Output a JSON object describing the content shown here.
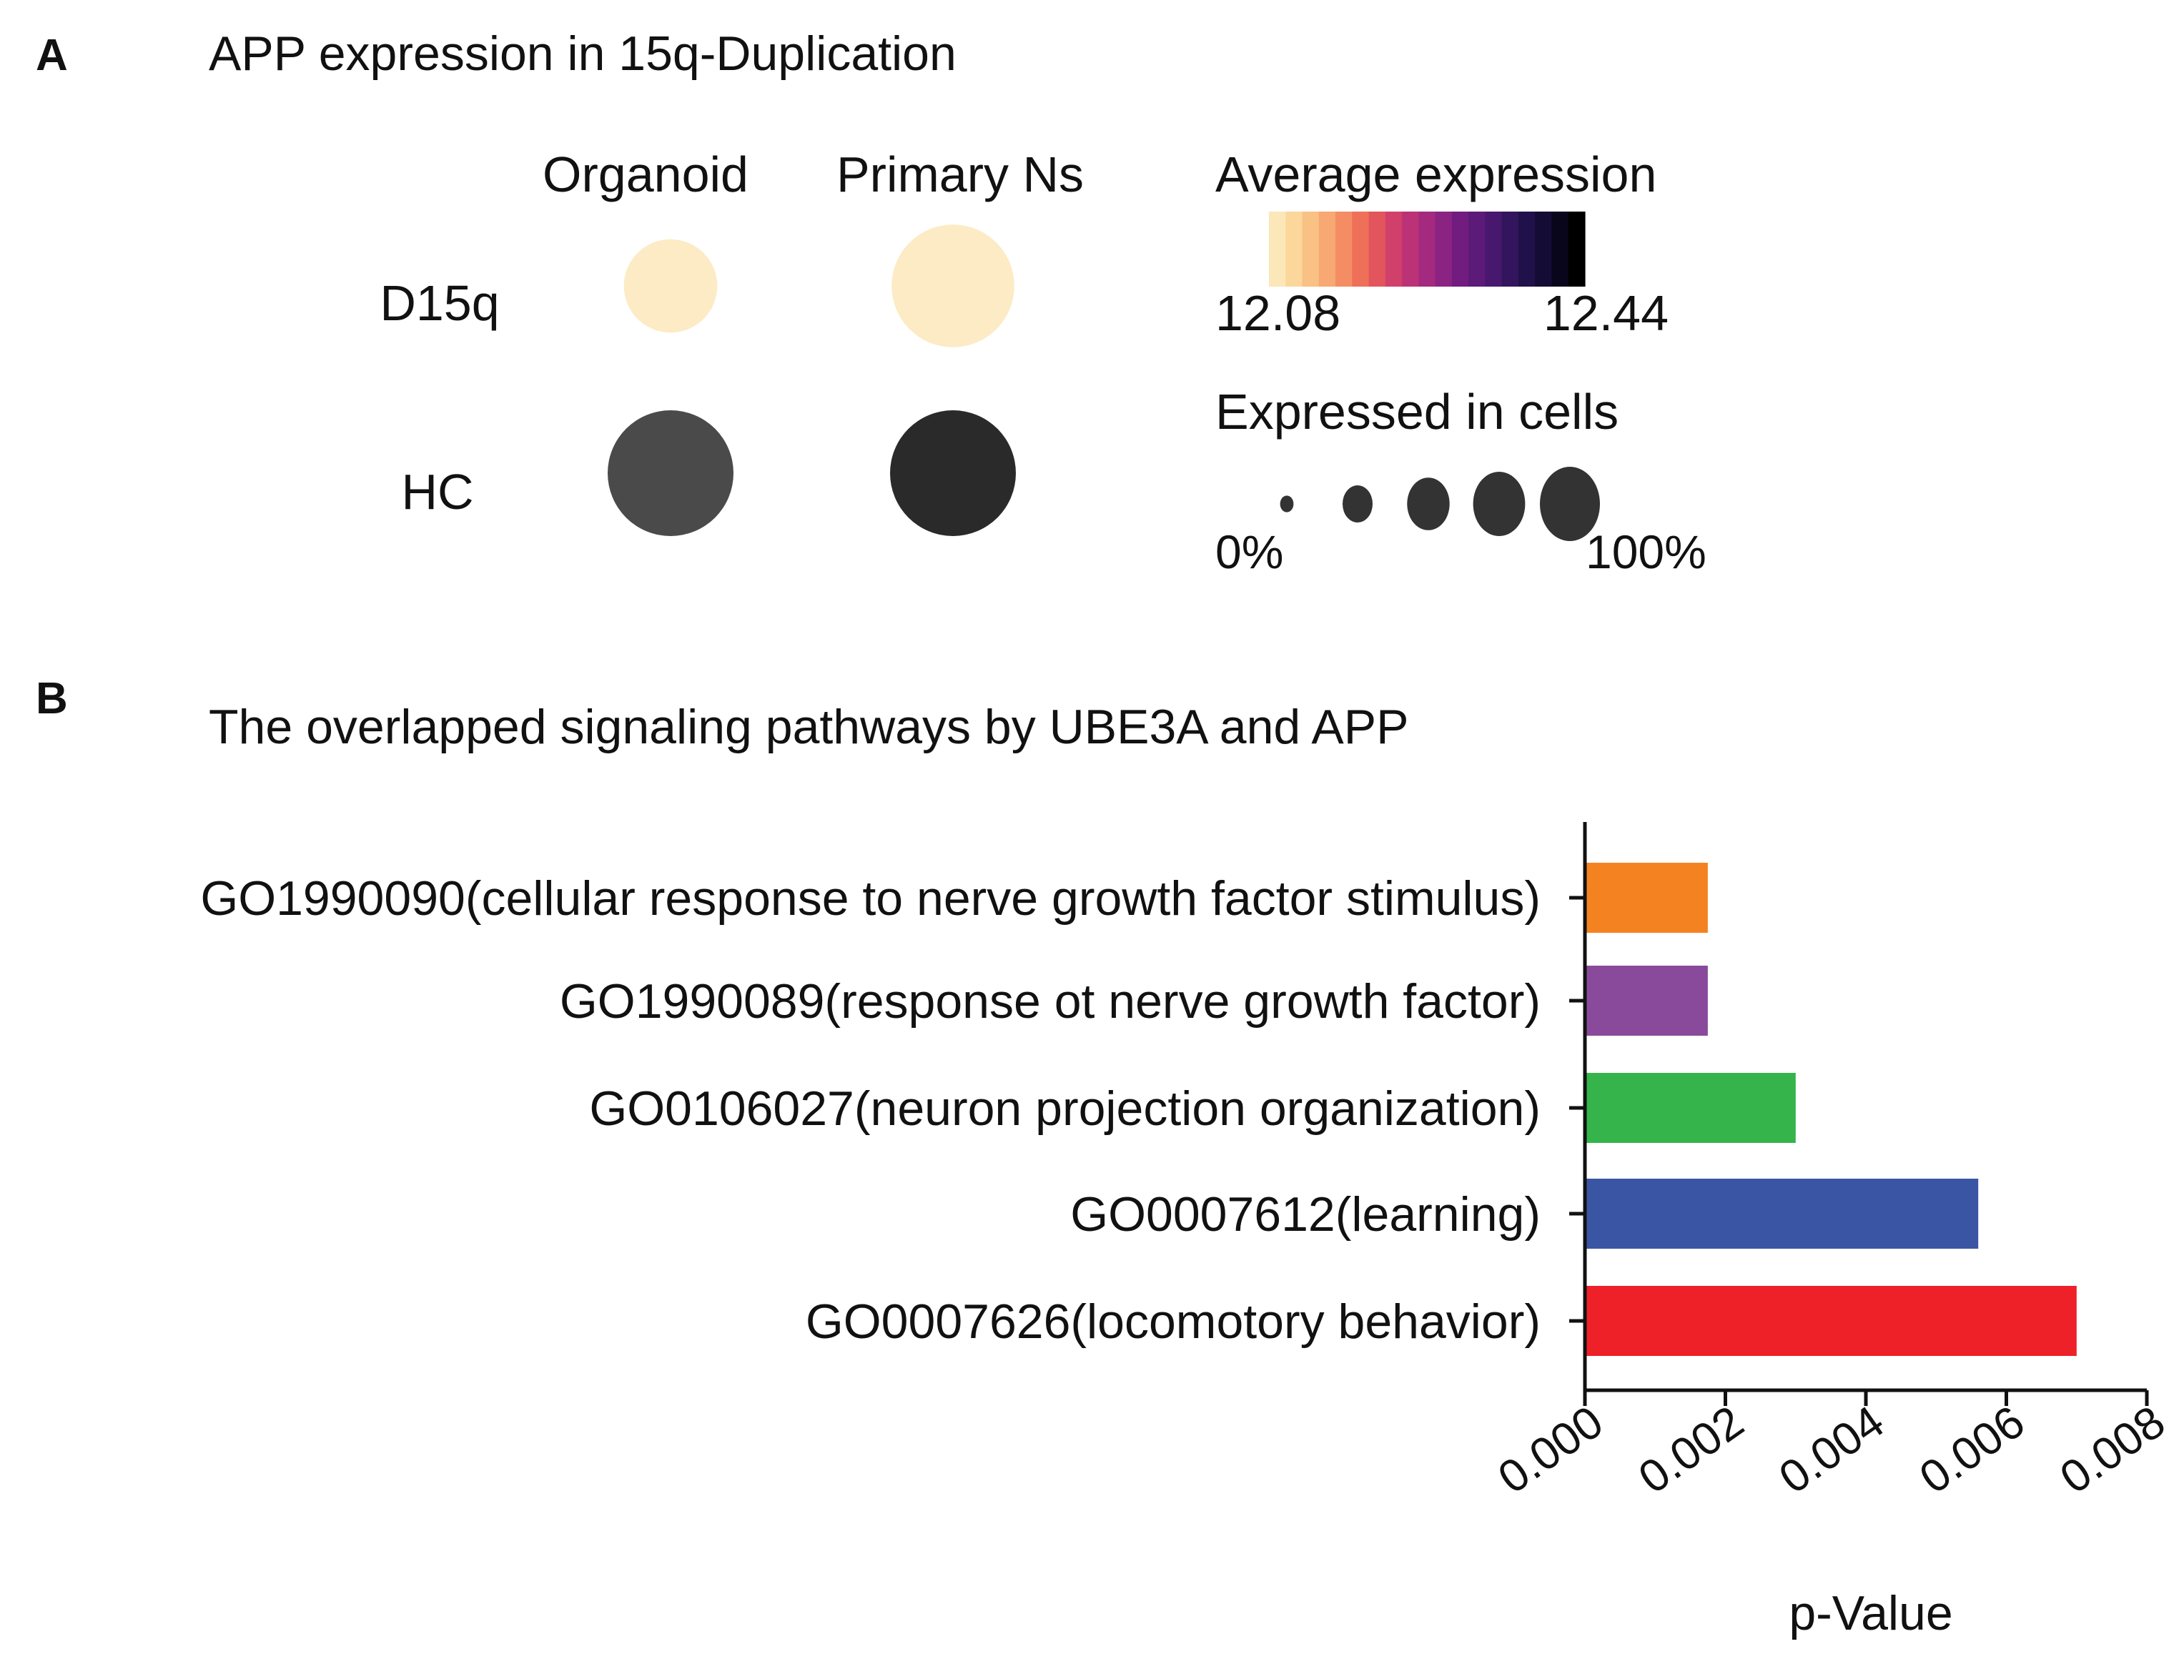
{
  "panel_a": {
    "letter": "A",
    "title": "APP expression in 15q-Duplication",
    "columns": [
      "Organoid",
      "Primary Ns"
    ],
    "rows": [
      "D15q",
      "HC"
    ],
    "legend_color": {
      "title": "Average expression",
      "min_label": "12.08",
      "max_label": "12.44",
      "colors": [
        "#fce7b8",
        "#fbd79b",
        "#f9c184",
        "#f7a873",
        "#f58d64",
        "#ef7058",
        "#e2555c",
        "#d1406a",
        "#bb3277",
        "#a32a7e",
        "#8b2382",
        "#721c7f",
        "#5c1a79",
        "#47186e",
        "#33155e",
        "#21114a",
        "#140c34",
        "#09061c",
        "#000000"
      ]
    },
    "legend_size": {
      "title": "Expressed in cells",
      "min_label": "0%",
      "max_label": "100%",
      "steps": [
        0.05,
        0.25,
        0.5,
        0.75,
        1.0
      ]
    }
  },
  "panel_b": {
    "letter": "B",
    "title": "The overlapped signaling pathways by UBE3A and APP"
  },
  "chart_data": [
    {
      "type": "dotplot",
      "title": "APP expression in 15q-Duplication",
      "x": [
        "Organoid",
        "Primary Ns"
      ],
      "y": [
        "D15q",
        "HC"
      ],
      "points": [
        {
          "row": "D15q",
          "col": "Organoid",
          "pct_expressed": 0.55,
          "avg_expression": 12.08,
          "color": "#fcebc4"
        },
        {
          "row": "D15q",
          "col": "Primary Ns",
          "pct_expressed": 0.95,
          "avg_expression": 12.08,
          "color": "#fcebc4"
        },
        {
          "row": "HC",
          "col": "Organoid",
          "pct_expressed": 1.0,
          "avg_expression": 12.34,
          "color": "#4a4a4a"
        },
        {
          "row": "HC",
          "col": "Primary Ns",
          "pct_expressed": 1.0,
          "avg_expression": 12.4,
          "color": "#2a2a2a"
        }
      ],
      "color_range": [
        12.08,
        12.44
      ],
      "size_range": [
        "0%",
        "100%"
      ]
    },
    {
      "type": "bar",
      "orientation": "horizontal",
      "title": "The overlapped signaling pathways by UBE3A and APP",
      "categories": [
        "GO1990090(cellular response to nerve growth factor stimulus)",
        "GO1990089(response ot nerve growth factor)",
        "GO0106027(neuron projection organization)",
        "GO0007612(learning)",
        "GO0007626(locomotory behavior)"
      ],
      "values": [
        0.00175,
        0.00175,
        0.003,
        0.0056,
        0.007
      ],
      "colors": [
        "#f58220",
        "#8a4a9c",
        "#34b44a",
        "#3a55a4",
        "#ee2028"
      ],
      "xlabel": "p-Value",
      "xlim": [
        0,
        0.008
      ],
      "xticks": [
        "0.000",
        "0.002",
        "0.004",
        "0.006",
        "0.008"
      ],
      "xtick_values": [
        0,
        0.002,
        0.004,
        0.006,
        0.008
      ]
    }
  ]
}
